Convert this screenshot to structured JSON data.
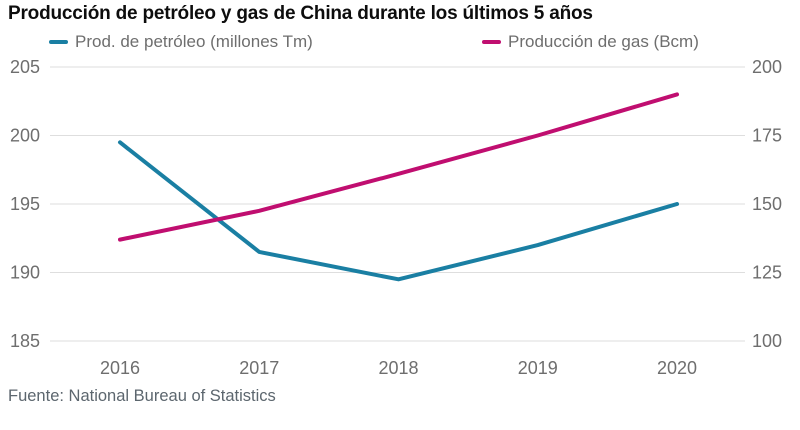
{
  "chart_data": {
    "type": "line",
    "title": "Producción de petróleo y gas de China durante los últimos 5 años",
    "source": "Fuente: National Bureau of Statistics",
    "x": [
      "2016",
      "2017",
      "2018",
      "2019",
      "2020"
    ],
    "series": [
      {
        "name": "Prod. de petróleo (millones Tm)",
        "axis": "left",
        "color": "#1a7fa3",
        "values": [
          199.5,
          191.5,
          189.5,
          192,
          195
        ]
      },
      {
        "name": "Producción de gas (Bcm)",
        "axis": "right",
        "color": "#c00e70",
        "values": [
          137,
          147.5,
          161,
          175,
          190
        ]
      }
    ],
    "left_axis": {
      "label": "millones Tm",
      "min": 185,
      "max": 205,
      "ticks": [
        205,
        200,
        195,
        190,
        185
      ]
    },
    "right_axis": {
      "label": "Bcm",
      "min": 100,
      "max": 200,
      "ticks": [
        200,
        175,
        150,
        125,
        100
      ]
    },
    "grid": true,
    "legend_position": "top",
    "gridline_color": "#dedede",
    "tick_color": "#6e6e6e"
  }
}
